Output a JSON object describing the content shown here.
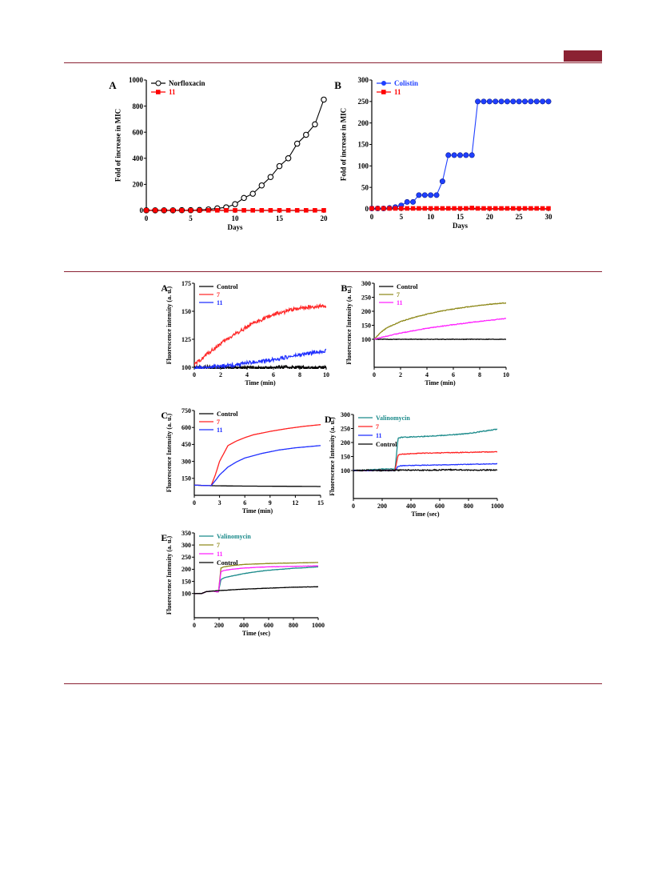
{
  "theme": {
    "rule_color": "#8b2233"
  },
  "figures": [
    {
      "id": "fig-mic-resistance",
      "panels": [
        "A",
        "B"
      ]
    },
    {
      "id": "fig-membrane-fluorescence",
      "panels": [
        "A",
        "B",
        "C",
        "D",
        "E"
      ]
    }
  ],
  "chart_data": [
    {
      "type": "line",
      "panel_label": "A",
      "xlabel": "Days",
      "ylabel": "Fold of increase in MIC",
      "xlim": [
        0,
        20
      ],
      "ylim": [
        0,
        1000
      ],
      "xticks": [
        0,
        5,
        10,
        15,
        20
      ],
      "yticks": [
        0,
        200,
        400,
        600,
        800,
        1000
      ],
      "legend": "top-left",
      "grid": false,
      "series": [
        {
          "name": "Norfloxacin",
          "color": "#000000",
          "marker": "circle-open",
          "x": [
            0,
            1,
            2,
            3,
            4,
            5,
            6,
            7,
            8,
            9,
            10,
            11,
            12,
            13,
            14,
            15,
            16,
            17,
            18,
            19,
            20
          ],
          "y": [
            1,
            1,
            1,
            1,
            2,
            2,
            4,
            8,
            16,
            24,
            48,
            96,
            128,
            192,
            256,
            340,
            400,
            512,
            580,
            660,
            850
          ]
        },
        {
          "name": "11",
          "color": "#ff0000",
          "marker": "square",
          "x": [
            0,
            1,
            2,
            3,
            4,
            5,
            6,
            7,
            8,
            9,
            10,
            11,
            12,
            13,
            14,
            15,
            16,
            17,
            18,
            19,
            20
          ],
          "y": [
            1,
            1,
            1,
            1,
            1,
            1,
            1,
            1,
            1,
            1,
            1,
            1,
            1,
            1,
            1,
            1,
            1,
            1,
            1,
            1,
            1
          ]
        }
      ]
    },
    {
      "type": "line",
      "panel_label": "B",
      "xlabel": "Days",
      "ylabel": "Fold of increase in MIC",
      "xlim": [
        0,
        30
      ],
      "ylim": [
        0,
        300
      ],
      "xticks": [
        0,
        5,
        10,
        15,
        20,
        25,
        30
      ],
      "yticks": [
        0,
        50,
        100,
        150,
        200,
        250,
        300
      ],
      "legend": "top-left",
      "grid": false,
      "series": [
        {
          "name": "Colistin",
          "color": "#1f3fff",
          "marker": "circle",
          "x": [
            0,
            1,
            2,
            3,
            4,
            5,
            6,
            7,
            8,
            9,
            10,
            11,
            12,
            13,
            14,
            15,
            16,
            17,
            18,
            19,
            20,
            21,
            22,
            23,
            24,
            25,
            26,
            27,
            28,
            29,
            30
          ],
          "y": [
            1,
            1,
            1,
            2,
            4,
            8,
            16,
            16,
            32,
            32,
            32,
            32,
            64,
            125,
            125,
            125,
            125,
            125,
            250,
            250,
            250,
            250,
            250,
            250,
            250,
            250,
            250,
            250,
            250,
            250,
            250
          ]
        },
        {
          "name": "11",
          "color": "#ff0000",
          "marker": "square",
          "x": [
            0,
            1,
            2,
            3,
            4,
            5,
            6,
            7,
            8,
            9,
            10,
            11,
            12,
            13,
            14,
            15,
            16,
            17,
            18,
            19,
            20,
            21,
            22,
            23,
            24,
            25,
            26,
            27,
            28,
            29,
            30
          ],
          "y": [
            1,
            1,
            1,
            1,
            1,
            1,
            1,
            1,
            1,
            1,
            1,
            1,
            1,
            1,
            1,
            1,
            1,
            2,
            1,
            1,
            1,
            1,
            1,
            1,
            1,
            1,
            1,
            1,
            1,
            1,
            1
          ]
        }
      ]
    },
    {
      "type": "line",
      "panel_label": "A",
      "xlabel": "Time (min)",
      "ylabel": "Fluorescence intensity (a. u.)",
      "xlim": [
        0,
        10
      ],
      "ylim": [
        100,
        175
      ],
      "xticks": [
        0,
        2,
        4,
        6,
        8,
        10
      ],
      "yticks": [
        100,
        125,
        150,
        175
      ],
      "legend": "top-left",
      "grid": false,
      "series": [
        {
          "name": "Control",
          "color": "#000000",
          "noise": 1.5,
          "x": [
            0,
            1,
            2,
            3,
            4,
            5,
            6,
            7,
            8,
            9,
            10
          ],
          "y": [
            100,
            100,
            99,
            100,
            100,
            99,
            100,
            100,
            100,
            99,
            100
          ]
        },
        {
          "name": "7",
          "color": "#ff2a2a",
          "noise": 1.6,
          "x": [
            0,
            0.5,
            1,
            2,
            3,
            4,
            5,
            6,
            7,
            8,
            9,
            10
          ],
          "y": [
            102,
            107,
            112,
            121,
            129,
            136,
            142,
            147,
            150,
            153,
            154,
            155
          ]
        },
        {
          "name": "11",
          "color": "#1f2fff",
          "noise": 1.6,
          "x": [
            0,
            1,
            2,
            3,
            4,
            5,
            6,
            7,
            8,
            9,
            10
          ],
          "y": [
            99,
            100,
            101,
            102,
            104,
            105,
            107,
            109,
            111,
            113,
            115
          ]
        }
      ]
    },
    {
      "type": "line",
      "panel_label": "B",
      "xlabel": "Time (min)",
      "ylabel": "Fluorescence Intensity (a. u.)",
      "xlim": [
        0,
        10
      ],
      "ylim": [
        0,
        300
      ],
      "xticks": [
        0,
        2,
        4,
        6,
        8,
        10
      ],
      "yticks": [
        100,
        150,
        200,
        250,
        300
      ],
      "legend": "top-left",
      "grid": false,
      "series": [
        {
          "name": "Control",
          "color": "#000000",
          "noise": 0.8,
          "x": [
            0,
            2,
            4,
            6,
            8,
            10
          ],
          "y": [
            100,
            100,
            100,
            100,
            100,
            100
          ]
        },
        {
          "name": "7",
          "color": "#8f8a1c",
          "noise": 1.2,
          "x": [
            0,
            0.5,
            1,
            2,
            3,
            4,
            5,
            6,
            7,
            8,
            9,
            10
          ],
          "y": [
            100,
            125,
            142,
            163,
            178,
            190,
            200,
            208,
            215,
            221,
            226,
            230
          ]
        },
        {
          "name": "11",
          "color": "#ff22ff",
          "noise": 1.2,
          "x": [
            0,
            1,
            2,
            3,
            4,
            5,
            6,
            7,
            8,
            9,
            10
          ],
          "y": [
            100,
            112,
            122,
            131,
            139,
            146,
            152,
            158,
            164,
            169,
            174
          ]
        }
      ]
    },
    {
      "type": "line",
      "panel_label": "C",
      "xlabel": "Time (min)",
      "ylabel": "Fluorescence Intensity (a. u.)",
      "xlim": [
        0,
        15
      ],
      "ylim": [
        0,
        750
      ],
      "xticks": [
        0,
        3,
        6,
        9,
        12,
        15
      ],
      "yticks": [
        150,
        300,
        450,
        600,
        750
      ],
      "legend": "top-left",
      "grid": false,
      "series": [
        {
          "name": "Control",
          "color": "#000000",
          "noise": 0,
          "x": [
            0,
            2,
            5,
            10,
            15
          ],
          "y": [
            90,
            85,
            82,
            80,
            78
          ]
        },
        {
          "name": "7",
          "color": "#ff2020",
          "noise": 0,
          "x": [
            0,
            2,
            2.5,
            3,
            4,
            5,
            6,
            7,
            9,
            11,
            13,
            15
          ],
          "y": [
            90,
            85,
            180,
            300,
            440,
            480,
            510,
            535,
            565,
            590,
            610,
            625
          ]
        },
        {
          "name": "11",
          "color": "#1f2fff",
          "noise": 0,
          "x": [
            0,
            2,
            2.5,
            3,
            4,
            5,
            6,
            8,
            10,
            12,
            15
          ],
          "y": [
            90,
            85,
            130,
            180,
            250,
            295,
            330,
            370,
            400,
            420,
            440
          ]
        }
      ]
    },
    {
      "type": "line",
      "panel_label": "D",
      "xlabel": "Time (sec)",
      "ylabel": "Fluorescence Intensity (a. u.)",
      "xlim": [
        0,
        1000
      ],
      "ylim": [
        0,
        300
      ],
      "xticks": [
        0,
        200,
        400,
        600,
        800,
        1000
      ],
      "yticks": [
        100,
        150,
        200,
        250,
        300
      ],
      "legend": "top-left",
      "grid": false,
      "series": [
        {
          "name": "Valinomycin",
          "color": "#1a8a8a",
          "noise": 1.5,
          "x": [
            0,
            100,
            200,
            290,
            310,
            330,
            400,
            500,
            600,
            700,
            800,
            900,
            1000
          ],
          "y": [
            100,
            102,
            105,
            105,
            215,
            218,
            220,
            222,
            225,
            228,
            232,
            240,
            248
          ]
        },
        {
          "name": "7",
          "color": "#ff2020",
          "noise": 1.2,
          "x": [
            0,
            100,
            200,
            290,
            310,
            330,
            400,
            500,
            600,
            700,
            800,
            900,
            1000
          ],
          "y": [
            100,
            100,
            101,
            101,
            155,
            158,
            160,
            162,
            163,
            164,
            165,
            166,
            167
          ]
        },
        {
          "name": "11",
          "color": "#1f2fff",
          "noise": 1.0,
          "x": [
            0,
            100,
            200,
            290,
            310,
            330,
            400,
            500,
            600,
            700,
            800,
            900,
            1000
          ],
          "y": [
            100,
            100,
            100,
            100,
            115,
            117,
            118,
            119,
            120,
            121,
            122,
            123,
            124
          ]
        },
        {
          "name": "Control",
          "color": "#000000",
          "noise": 2.0,
          "x": [
            0,
            100,
            200,
            300,
            400,
            500,
            600,
            700,
            800,
            900,
            1000
          ],
          "y": [
            100,
            101,
            100,
            101,
            102,
            101,
            102,
            103,
            101,
            102,
            101
          ]
        }
      ]
    },
    {
      "type": "line",
      "panel_label": "E",
      "xlabel": "Time (sec)",
      "ylabel": "Fluorescence Intensity (a. u.)",
      "xlim": [
        0,
        1000
      ],
      "ylim": [
        0,
        350
      ],
      "xticks": [
        0,
        200,
        400,
        600,
        800,
        1000
      ],
      "yticks": [
        100,
        150,
        200,
        250,
        300,
        350
      ],
      "legend": "top-left",
      "grid": false,
      "series": [
        {
          "name": "Valinomycin",
          "color": "#1a8a8a",
          "noise": 0.6,
          "x": [
            0,
            60,
            100,
            150,
            195,
            215,
            240,
            300,
            400,
            500,
            600,
            700,
            800,
            900,
            1000
          ],
          "y": [
            100,
            100,
            108,
            110,
            106,
            158,
            165,
            172,
            182,
            190,
            196,
            200,
            204,
            207,
            210
          ]
        },
        {
          "name": "7",
          "color": "#8f8a1c",
          "noise": 0.5,
          "x": [
            0,
            60,
            100,
            150,
            195,
            215,
            240,
            300,
            400,
            500,
            600,
            700,
            800,
            900,
            1000
          ],
          "y": [
            100,
            100,
            108,
            110,
            106,
            205,
            210,
            215,
            220,
            222,
            224,
            225,
            226,
            227,
            228
          ]
        },
        {
          "name": "11",
          "color": "#ff22ff",
          "noise": 0.5,
          "x": [
            0,
            60,
            100,
            150,
            195,
            215,
            240,
            300,
            400,
            500,
            600,
            700,
            800,
            900,
            1000
          ],
          "y": [
            100,
            100,
            108,
            110,
            106,
            190,
            195,
            200,
            205,
            208,
            210,
            211,
            212,
            213,
            214
          ]
        },
        {
          "name": "Control",
          "color": "#000000",
          "noise": 0.5,
          "x": [
            0,
            60,
            100,
            150,
            200,
            300,
            400,
            500,
            600,
            700,
            800,
            900,
            1000
          ],
          "y": [
            100,
            100,
            108,
            110,
            112,
            115,
            118,
            120,
            122,
            124,
            126,
            127,
            128
          ]
        }
      ]
    }
  ]
}
